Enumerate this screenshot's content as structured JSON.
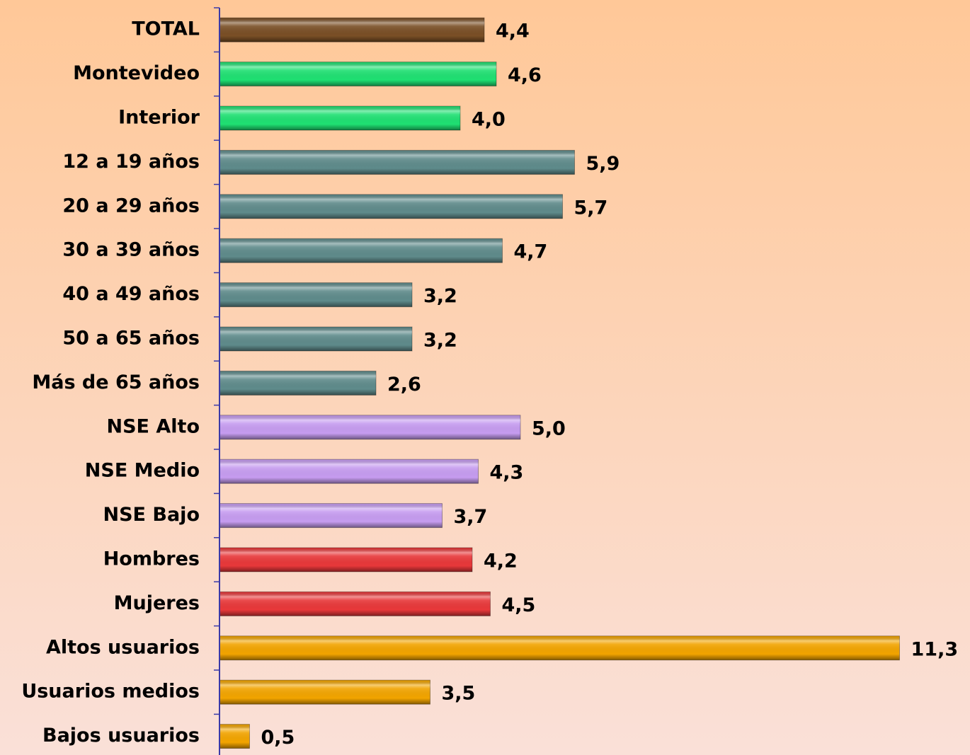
{
  "chart_data": {
    "type": "bar",
    "orientation": "horizontal",
    "categories": [
      "TOTAL",
      "Montevideo",
      "Interior",
      "12 a 19 años",
      "20 a 29 años",
      "30 a 39 años",
      "40 a 49 años",
      "50 a 65 años",
      "Más de 65 años",
      "NSE Alto",
      "NSE Medio",
      "NSE Bajo",
      "Hombres",
      "Mujeres",
      "Altos usuarios",
      "Usuarios medios",
      "Bajos usuarios"
    ],
    "values": [
      4.4,
      4.6,
      4.0,
      5.9,
      5.7,
      4.7,
      3.2,
      3.2,
      2.6,
      5.0,
      4.3,
      3.7,
      4.2,
      4.5,
      11.3,
      3.5,
      0.5
    ],
    "value_labels": [
      "4,4",
      "4,6",
      "4,0",
      "5,9",
      "5,7",
      "4,7",
      "3,2",
      "3,2",
      "2,6",
      "5,0",
      "4,3",
      "3,7",
      "4,2",
      "4,5",
      "11,3",
      "3,5",
      "0,5"
    ],
    "colors": [
      "#7a4f26",
      "#1fe072",
      "#1fe072",
      "#5f8b8b",
      "#5f8b8b",
      "#5f8b8b",
      "#5f8b8b",
      "#5f8b8b",
      "#5f8b8b",
      "#c69cf0",
      "#c69cf0",
      "#c69cf0",
      "#e8383a",
      "#e8383a",
      "#f2a400",
      "#f2a400",
      "#f2a400"
    ],
    "xlim": [
      0,
      12
    ]
  }
}
